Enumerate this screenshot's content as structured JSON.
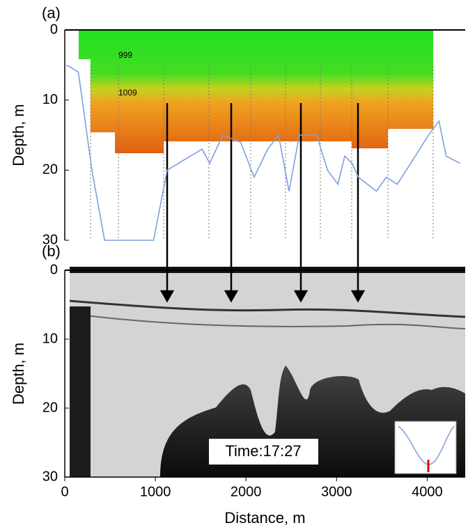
{
  "chart_data": [
    {
      "type": "line",
      "panel_label": "(a)",
      "y_label": "Depth, m",
      "annotations": [
        "999",
        "1009"
      ],
      "series": [
        {
          "color": "#7f9fdc",
          "x": [
            20,
            150,
            300,
            440,
            600,
            980,
            1130,
            1515,
            1600,
            1745,
            1940,
            2090,
            2240,
            2360,
            2475,
            2590,
            2780,
            2900,
            3015,
            3090,
            3170,
            3240,
            3440,
            3550,
            3670,
            3820,
            4015,
            4130,
            4210,
            4360
          ],
          "values": [
            5,
            6,
            20,
            30,
            30,
            30,
            20,
            17,
            19,
            15,
            16,
            21,
            17,
            15,
            23,
            15,
            15,
            20,
            22,
            18,
            19,
            21,
            23,
            21,
            22,
            19,
            15,
            13,
            18,
            19
          ]
        }
      ],
      "xlim": [
        0,
        4420
      ],
      "ylim": [
        30,
        0
      ],
      "yticks": [
        0,
        10,
        20,
        30
      ]
    },
    {
      "type": "echogram",
      "panel_label": "(b)",
      "y_label": "Depth, m",
      "x_label": "Distance, m",
      "annotations": [
        "Time:17:27"
      ],
      "xlim": [
        0,
        4420
      ],
      "ylim": [
        30,
        0
      ],
      "xticks": [
        0,
        1000,
        2000,
        3000,
        4000
      ],
      "yticks": [
        0,
        10,
        20,
        30
      ]
    }
  ]
}
